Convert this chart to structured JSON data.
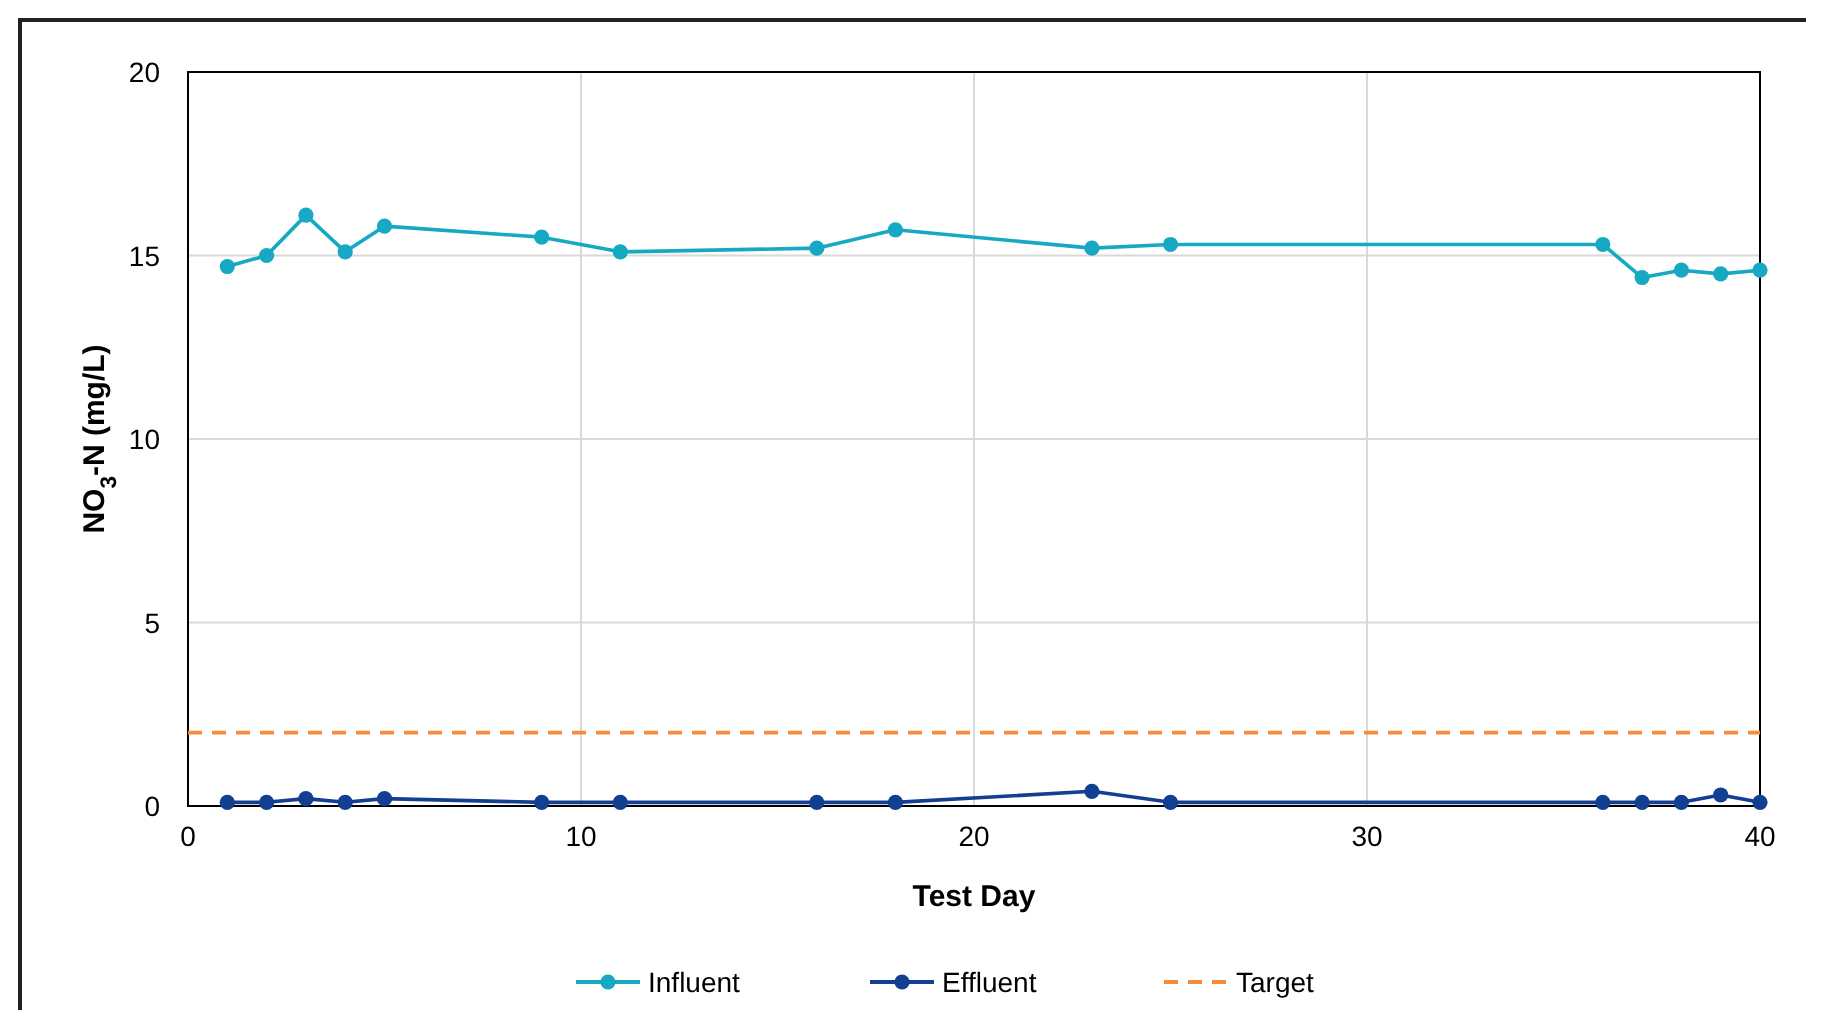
{
  "chart_data": {
    "type": "line",
    "xlabel": "Test Day",
    "ylabel": "NO$_{3}$-N (mg/L)",
    "x": [
      1,
      2,
      3,
      4,
      5,
      9,
      11,
      16,
      18,
      23,
      25,
      36,
      37,
      38,
      39,
      40
    ],
    "series": [
      {
        "name": "Influent",
        "color": "#17a8c4",
        "marker": "circle",
        "values": [
          14.7,
          15.0,
          16.1,
          15.1,
          15.8,
          15.5,
          15.1,
          15.2,
          15.7,
          15.2,
          15.3,
          15.3,
          14.4,
          14.6,
          14.5,
          14.6
        ]
      },
      {
        "name": "Effluent",
        "color": "#123f91",
        "marker": "circle",
        "values": [
          0.1,
          0.1,
          0.2,
          0.1,
          0.2,
          0.1,
          0.1,
          0.1,
          0.1,
          0.4,
          0.1,
          0.1,
          0.1,
          0.1,
          0.3,
          0.1
        ]
      },
      {
        "name": "Target",
        "color": "#f58a3c",
        "marker": "none",
        "line_style": "dashed",
        "x": [
          0,
          40
        ],
        "values": [
          2,
          2
        ]
      }
    ],
    "xlim": [
      0,
      40
    ],
    "xticks": [
      0,
      10,
      20,
      30,
      40
    ],
    "ylim": [
      0,
      20
    ],
    "yticks": [
      0,
      5,
      10,
      15,
      20
    ],
    "grid": true,
    "legend": "bottom"
  }
}
